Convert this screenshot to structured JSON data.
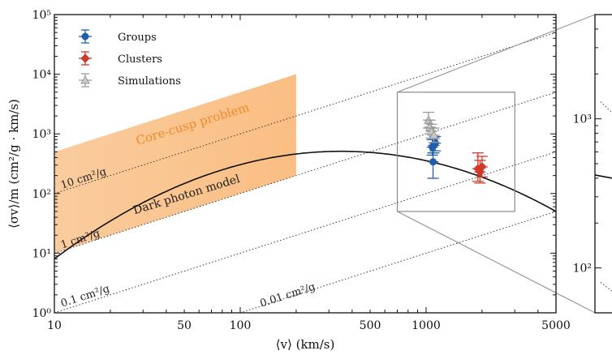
{
  "chart_data": [
    {
      "type": "scatter",
      "xlabel": "⟨v⟩ (km/s)",
      "ylabel": "⟨σv⟩/m (cm²/g · km/s)",
      "xscale": "log",
      "yscale": "log",
      "xlim": [
        10,
        5000
      ],
      "ylim": [
        1,
        100000
      ],
      "x_tick_labels": [
        "10",
        "50",
        "100",
        "500",
        "1000",
        "5000"
      ],
      "y_tick_labels": [
        "10⁰",
        "10¹",
        "10²",
        "10³",
        "10⁴",
        "10⁵"
      ],
      "legend_position": "top-left",
      "legend": [
        {
          "name": "Groups",
          "color": "#1f5fa8"
        },
        {
          "name": "Clusters",
          "color": "#d03a2a"
        },
        {
          "name": "Simulations",
          "color": "#9a9a9a"
        }
      ],
      "series": [
        {
          "name": "Groups",
          "color": "#1f5fa8",
          "points": [
            {
              "x": 1080,
              "y": 600,
              "ylo": 440,
              "yhi": 800
            },
            {
              "x": 1100,
              "y": 640,
              "ylo": 480,
              "yhi": 850
            },
            {
              "x": 1120,
              "y": 700,
              "ylo": 520,
              "yhi": 900
            },
            {
              "x": 1090,
              "y": 340,
              "ylo": 180,
              "yhi": 480
            }
          ]
        },
        {
          "name": "Clusters",
          "color": "#d03a2a",
          "points": [
            {
              "x": 1900,
              "y": 260,
              "ylo": 160,
              "yhi": 480
            },
            {
              "x": 1950,
              "y": 230,
              "ylo": 150,
              "yhi": 360
            },
            {
              "x": 2000,
              "y": 280,
              "ylo": 190,
              "yhi": 420
            }
          ]
        },
        {
          "name": "Simulations",
          "color": "#9a9a9a",
          "points": [
            {
              "x": 1030,
              "y": 1700,
              "ylo": 1250,
              "yhi": 2300
            },
            {
              "x": 1050,
              "y": 1300,
              "ylo": 1000,
              "yhi": 1700
            },
            {
              "x": 1070,
              "y": 1100,
              "ylo": 850,
              "yhi": 1450
            },
            {
              "x": 1100,
              "y": 950,
              "ylo": 720,
              "yhi": 1250
            }
          ]
        }
      ],
      "dark_photon_curve": {
        "label": "Dark photon model",
        "peak_x": 350,
        "peak_y": 510,
        "width_dex": 1.15
      },
      "band": {
        "label": "Core-cusp problem",
        "x": [
          10,
          200
        ],
        "lower": [
          10,
          200
        ],
        "upper": [
          500,
          10000
        ],
        "color": "#f5a04a"
      },
      "constant_lines": [
        {
          "label": "10 cm²/g",
          "value": 10
        },
        {
          "label": "1 cm²/g",
          "value": 1
        },
        {
          "label": "0.1 cm²/g",
          "value": 0.1
        },
        {
          "label": "0.01 cm²/g",
          "value": 0.01
        }
      ],
      "zoom_box": {
        "x": [
          700,
          3000
        ],
        "y": [
          50,
          5000
        ]
      }
    },
    {
      "type": "line",
      "note": "zoomed inset panel, cropped at right edge",
      "y_tick_labels": [
        "10³",
        "10²"
      ],
      "y_ticks": [
        1000,
        100
      ]
    }
  ]
}
